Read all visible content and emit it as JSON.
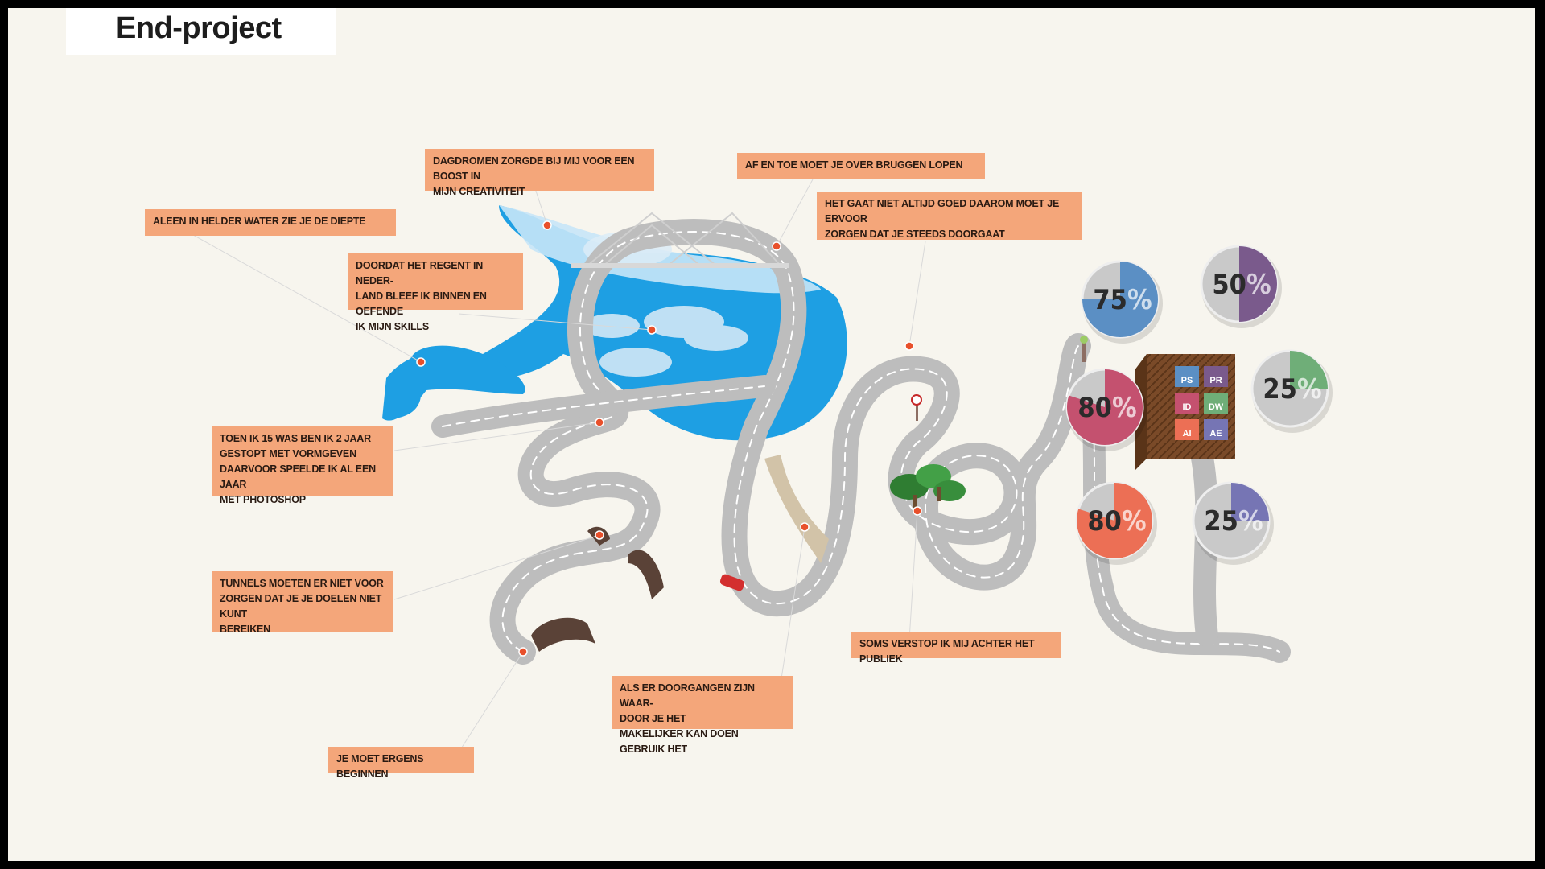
{
  "title": "End-project",
  "callouts": [
    {
      "id": "c1",
      "text": "Dagdromen zorgde bij mij voor een boost in\nmijn creativiteit"
    },
    {
      "id": "c2",
      "text": "Af en toe moet je over bruggen lopen"
    },
    {
      "id": "c3",
      "text": "Aleen in helder water zie je de diepte"
    },
    {
      "id": "c4",
      "text": "Het gaat niet altijd goed daarom moet je ervoor\nzorgen dat je steeds doorgaat"
    },
    {
      "id": "c5",
      "text": "Doordat het regent in neder-\nland bleef ik binnen en oefende\nik mijn skills"
    },
    {
      "id": "c6",
      "text": "Toen ik 15 was ben ik 2 jaar\ngestopt met vormgeven\ndaarvoor speelde ik al een jaar\nmet photoshop"
    },
    {
      "id": "c7",
      "text": "Tunnels moeten er niet voor\nzorgen dat je je doelen niet kunt\nbereiken"
    },
    {
      "id": "c8",
      "text": "Soms verstop ik mij achter het publiek"
    },
    {
      "id": "c9",
      "text": "Als er doorgangen zijn waar-\ndoor je het\nmakelijker kan doen gebruik het"
    },
    {
      "id": "c10",
      "text": "Je moet ergens beginnen"
    }
  ],
  "skills": [
    {
      "name": "PS",
      "value": 75,
      "color": "#5b8fc4"
    },
    {
      "name": "PR",
      "value": 50,
      "color": "#7a5a8c"
    },
    {
      "name": "DW",
      "value": 25,
      "color": "#6fae78"
    },
    {
      "name": "ID",
      "value": 80,
      "color": "#c4516f"
    },
    {
      "name": "AI",
      "value": 80,
      "color": "#ec6f55"
    },
    {
      "name": "AE",
      "value": 25,
      "color": "#7675b4"
    }
  ],
  "percent_sign": "%",
  "colors": {
    "accent": "#f4a67a",
    "water": "#1e9fe3",
    "road": "#bdbdbd",
    "marker": "#e8502b"
  }
}
